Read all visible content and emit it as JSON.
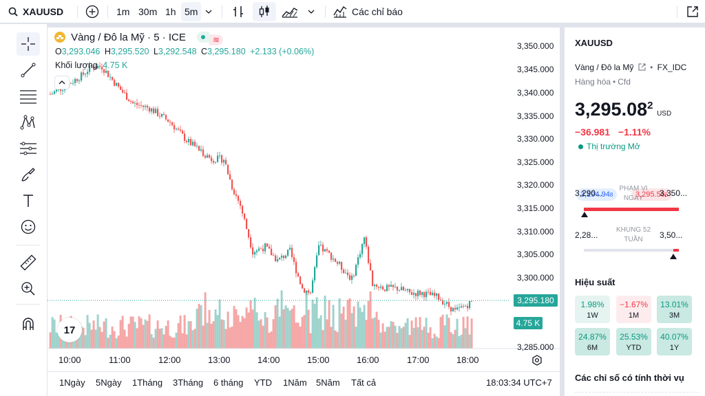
{
  "header": {
    "symbol": "XAUUSD",
    "intervals": [
      "1m",
      "30m",
      "1h",
      "5m"
    ],
    "indicators_label": "Các chỉ báo"
  },
  "legend": {
    "title": "Vàng / Đô la Mỹ · 5 · ICE",
    "o_label": "O",
    "o": "3,293.046",
    "h_label": "H",
    "h": "3,295.520",
    "l_label": "L",
    "l": "3,292.548",
    "c_label": "C",
    "c": "3,295.180",
    "change": "+2.133 (+0.06%)",
    "volume_label": "Khối lượng",
    "volume": "4.75 K",
    "tv_logo": "17"
  },
  "price_axis": {
    "ticks": [
      "3,350.000",
      "3,345.000",
      "3,340.000",
      "3,335.000",
      "3,330.000",
      "3,325.000",
      "3,320.000",
      "3,315.000",
      "3,310.000",
      "3,305.000",
      "3,300.000",
      "3,295.180",
      "4.75 K",
      "3,285.000"
    ],
    "current": "3,295.180",
    "volume_tag": "4.75 K"
  },
  "time_axis": [
    "10:00",
    "11:00",
    "12:00",
    "13:00",
    "14:00",
    "15:00",
    "16:00",
    "17:00",
    "18:00"
  ],
  "ranges": [
    "1Ngày",
    "5Ngày",
    "1Tháng",
    "3Tháng",
    "6 tháng",
    "YTD",
    "1Năm",
    "5Năm",
    "Tất cả"
  ],
  "clock": "18:03:34 UTC+7",
  "chart_data": {
    "type": "candlestick",
    "title": "Vàng / Đô la Mỹ · 5 · ICE",
    "ylim": [
      3284,
      3352
    ],
    "x_ticks": [
      "10:00",
      "11:00",
      "12:00",
      "13:00",
      "14:00",
      "15:00",
      "16:00",
      "17:00",
      "18:00"
    ],
    "last_close": 3295.18,
    "last_volume": "4.75 K"
  },
  "panel": {
    "symbol": "XAUUSD",
    "name": "Vàng / Đô la Mỹ",
    "source": "FX_IDC",
    "category": "Hàng hóa",
    "type": "Cfd",
    "price_main": "3,295.08",
    "price_sup": "2",
    "currency": "USD",
    "change": "−36.981",
    "change_pct": "−1.11%",
    "market_status": "Thị trường Mở",
    "bid_main": "3,294.94",
    "bid_sup": "8",
    "ask_main": "3,295.56",
    "ask_sup": "5",
    "day_low": "3,290...",
    "day_label_1": "PHẠM VI",
    "day_label_2": "NGÀY",
    "day_high": "3,350...",
    "w52_low": "2,28...",
    "w52_label_1": "KHUNG 52",
    "w52_label_2": "TUẦN",
    "w52_high": "3,50...",
    "perf_title": "Hiệu suất",
    "perf": [
      {
        "v": "1.98%",
        "p": "1W"
      },
      {
        "v": "−1.67%",
        "p": "1M"
      },
      {
        "v": "13.01%",
        "p": "3M"
      },
      {
        "v": "24.87%",
        "p": "6M"
      },
      {
        "v": "25.53%",
        "p": "YTD"
      },
      {
        "v": "40.07%",
        "p": "1Y"
      }
    ],
    "tech_title": "Các chỉ số có tính thời vụ"
  }
}
